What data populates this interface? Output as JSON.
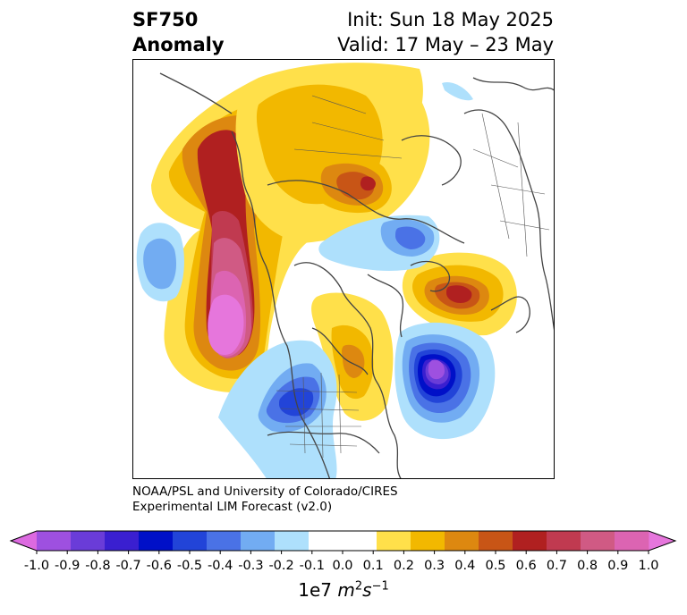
{
  "header": {
    "variable": "SF750",
    "field": "Anomaly",
    "init": "Init: Sun 18 May 2025",
    "valid": "Valid: 17 May – 23 May"
  },
  "credit": {
    "line1": "NOAA/PSL and University of Colorado/CIRES",
    "line2": "Experimental LIM Forecast (v2.0)"
  },
  "colorbar": {
    "ticks": [
      "-1.0",
      "-0.9",
      "-0.8",
      "-0.7",
      "-0.6",
      "-0.5",
      "-0.4",
      "-0.3",
      "-0.2",
      "-0.1",
      "0.0",
      "0.1",
      "0.2",
      "0.3",
      "0.4",
      "0.5",
      "0.6",
      "0.7",
      "0.8",
      "0.9",
      "1.0"
    ],
    "colors": [
      "#9e50e0",
      "#6a3cd8",
      "#3a1fd0",
      "#0010c8",
      "#2244d8",
      "#4a72e6",
      "#72acf2",
      "#aee0fc",
      "#ffffff",
      "#ffffff",
      "#ffe04a",
      "#f2b800",
      "#dd8810",
      "#c85516",
      "#b02020",
      "#c03a50",
      "#d05a84",
      "#dc64b2"
    ],
    "under_color": "#dc6ae0",
    "over_color": "#e676dc",
    "label_prefix": "1e7 ",
    "label_unit": "m",
    "label_unit_exp1": "2",
    "label_unit2": "s",
    "label_unit_exp2": "−1"
  },
  "palette": {
    "blue1": "#aee0fc",
    "blue2": "#72acf2",
    "blue3": "#4a72e6",
    "blue4": "#2244d8",
    "blue5": "#0010c8",
    "blue6": "#3a1fd0",
    "blue7": "#6a3cd8",
    "blue8": "#9e50e0",
    "y1": "#ffe04a",
    "y2": "#f2b800",
    "o1": "#dd8810",
    "o2": "#c85516",
    "r1": "#b02020",
    "r2": "#c03a50",
    "p1": "#d05a84",
    "p2": "#dc64b2",
    "p3": "#e676dc"
  }
}
